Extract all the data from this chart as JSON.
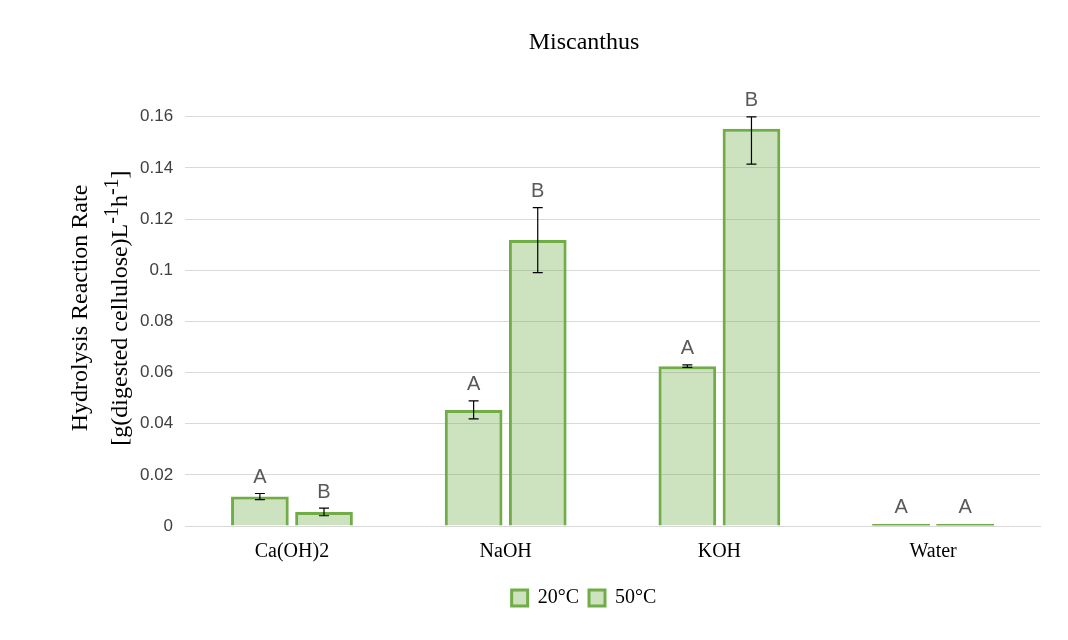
{
  "chart_data": {
    "type": "bar",
    "title": "Miscanthus",
    "ylabel": "Hydrolysis Reaction Rate\n[g(digested cellulose)L$^{-1}$h$^{-1}$]",
    "categories": [
      "Ca(OH)2",
      "NaOH",
      "KOH",
      "Water"
    ],
    "series": [
      {
        "name": "20°C",
        "color": "#70ad47",
        "values": [
          0.0115,
          0.0454,
          0.0625,
          0.0008
        ],
        "errors": [
          0.0012,
          0.0035,
          0.0005,
          null
        ],
        "value_labels": [
          "A",
          "A",
          "A",
          "A"
        ]
      },
      {
        "name": "50°C",
        "color": "#70ad47",
        "values": [
          0.0055,
          0.1118,
          0.1553,
          0.0008
        ],
        "errors": [
          0.0015,
          0.0127,
          [
            0.1415,
            0.16
          ],
          null
        ],
        "value_labels": [
          "B",
          "B",
          "B",
          "A"
        ]
      }
    ],
    "ylim": [
      0,
      0.16
    ],
    "yticks": [
      0,
      {
        "value": 0.02,
        "label": "0.02"
      },
      {
        "value": 0.04,
        "label": "0.04"
      },
      {
        "value": 0.06,
        "label": "0.06"
      },
      {
        "value": 0.08,
        "label": "0.08"
      },
      {
        "value": 0.1,
        "label": "0.1"
      },
      {
        "value": 0.12,
        "label": "0.12"
      },
      {
        "value": 0.14,
        "label": "0.14"
      },
      {
        "value": 0.16,
        "label": "0.16"
      }
    ],
    "grid": "y",
    "legend": "bottom"
  }
}
